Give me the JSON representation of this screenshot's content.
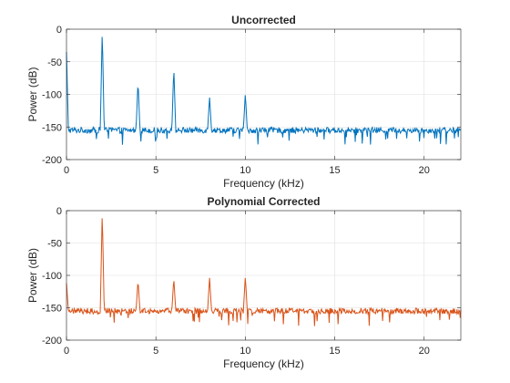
{
  "chart_data": [
    {
      "type": "line",
      "title": "Uncorrected",
      "xlabel": "Frequency (kHz)",
      "ylabel": "Power (dB)",
      "xlim": [
        0,
        22.05
      ],
      "ylim": [
        -200,
        0
      ],
      "xticks": [
        0,
        5,
        10,
        15,
        20
      ],
      "yticks": [
        0,
        -50,
        -100,
        -150,
        -200
      ],
      "grid": true,
      "color": "#0072BD",
      "series": [
        {
          "noise_floor_db": -155,
          "peaks": [
            {
              "x": 0,
              "y": -35
            },
            {
              "x": 2,
              "y": 0
            },
            {
              "x": 4,
              "y": -79
            },
            {
              "x": 6,
              "y": -58
            },
            {
              "x": 8,
              "y": -104
            },
            {
              "x": 10,
              "y": -98
            }
          ]
        }
      ]
    },
    {
      "type": "line",
      "title": "Polynomial Corrected",
      "xlabel": "Frequency (kHz)",
      "ylabel": "Power (dB)",
      "xlim": [
        0,
        22.05
      ],
      "ylim": [
        -200,
        0
      ],
      "xticks": [
        0,
        5,
        10,
        15,
        20
      ],
      "yticks": [
        0,
        -50,
        -100,
        -150,
        -200
      ],
      "grid": true,
      "color": "#D95319",
      "series": [
        {
          "noise_floor_db": -155,
          "peaks": [
            {
              "x": 0,
              "y": -112
            },
            {
              "x": 2,
              "y": 0
            },
            {
              "x": 4,
              "y": -107
            },
            {
              "x": 6,
              "y": -104
            },
            {
              "x": 8,
              "y": -103
            },
            {
              "x": 10,
              "y": -101
            }
          ]
        }
      ]
    }
  ]
}
